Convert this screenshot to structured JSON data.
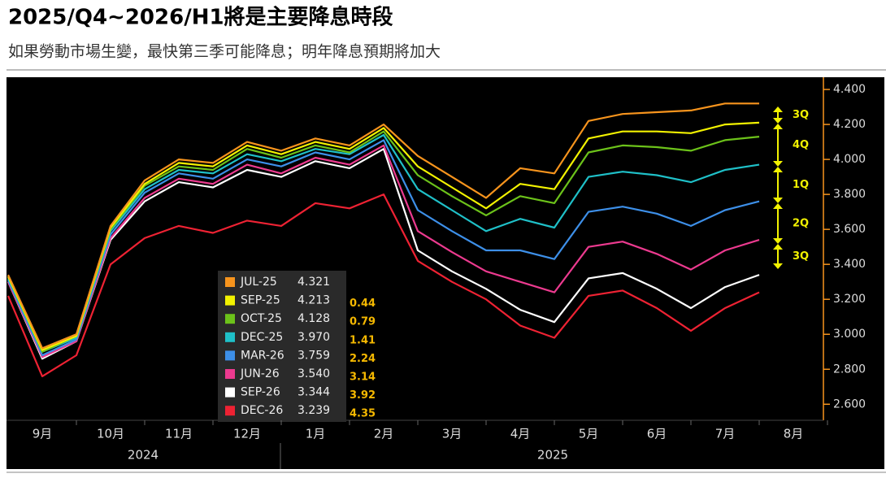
{
  "chart_data": {
    "type": "line",
    "title": "2025/Q4~2026/H1將是主要降息時段",
    "subtitle": "如果勞動市場生變，最快第三季可能降息；明年降息預期將加大",
    "categories": [
      null,
      "9月",
      null,
      "10月",
      null,
      "11月",
      null,
      "12月",
      null,
      "1月",
      null,
      "2月",
      null,
      "3月",
      null,
      "4月",
      null,
      "5月",
      null,
      "6月",
      null,
      "7月",
      null,
      "8月"
    ],
    "years": [
      "2024",
      "2025"
    ],
    "ylim": [
      2.42,
      4.47
    ],
    "yticks": [
      {
        "value": 2.6,
        "label": "2.600"
      },
      {
        "value": 2.8,
        "label": "2.800"
      },
      {
        "value": 3.0,
        "label": "3.000"
      },
      {
        "value": 3.2,
        "label": "3.200"
      },
      {
        "value": 3.4,
        "label": "3.400"
      },
      {
        "value": 3.6,
        "label": "3.600"
      },
      {
        "value": 3.8,
        "label": "3.800"
      },
      {
        "value": 4.0,
        "label": "4.000"
      },
      {
        "value": 4.2,
        "label": "4.200"
      },
      {
        "value": 4.4,
        "label": "4.400"
      }
    ],
    "grid": false,
    "series": [
      {
        "name": "JUL-25",
        "legend_value": "4.321",
        "color": "#f7941d",
        "values": [
          3.34,
          2.92,
          3.0,
          3.62,
          3.88,
          4.0,
          3.98,
          4.1,
          4.05,
          4.12,
          4.08,
          4.2,
          4.02,
          3.9,
          3.78,
          3.95,
          3.92,
          4.22,
          4.26,
          4.27,
          4.28,
          4.32,
          4.32,
          null
        ]
      },
      {
        "name": "SEP-25",
        "legend_value": "4.213",
        "cuts": 0.44,
        "color": "#f2f200",
        "values": [
          3.33,
          2.91,
          2.99,
          3.61,
          3.86,
          3.98,
          3.96,
          4.08,
          4.03,
          4.1,
          4.06,
          4.18,
          3.96,
          3.84,
          3.72,
          3.86,
          3.83,
          4.12,
          4.16,
          4.16,
          4.15,
          4.2,
          4.21,
          null
        ]
      },
      {
        "name": "OCT-25",
        "legend_value": "4.128",
        "cuts": 0.79,
        "color": "#6cc21a",
        "values": [
          3.33,
          2.9,
          2.99,
          3.6,
          3.85,
          3.96,
          3.94,
          4.06,
          4.01,
          4.08,
          4.04,
          4.16,
          3.91,
          3.79,
          3.68,
          3.79,
          3.75,
          4.04,
          4.08,
          4.07,
          4.05,
          4.11,
          4.13,
          null
        ]
      },
      {
        "name": "DEC-25",
        "legend_value": "3.970",
        "cuts": 1.41,
        "color": "#1fc0c8",
        "values": [
          3.32,
          2.9,
          2.98,
          3.59,
          3.83,
          3.94,
          3.92,
          4.03,
          3.99,
          4.06,
          4.03,
          4.14,
          3.83,
          3.71,
          3.59,
          3.66,
          3.61,
          3.9,
          3.93,
          3.91,
          3.87,
          3.94,
          3.97,
          null
        ]
      },
      {
        "name": "MAR-26",
        "legend_value": "3.759",
        "cuts": 2.24,
        "color": "#3d8fe8",
        "values": [
          3.31,
          2.88,
          2.97,
          3.57,
          3.81,
          3.92,
          3.89,
          4.0,
          3.96,
          4.04,
          4.0,
          4.11,
          3.71,
          3.59,
          3.48,
          3.48,
          3.43,
          3.7,
          3.73,
          3.69,
          3.62,
          3.71,
          3.76,
          null
        ]
      },
      {
        "name": "JUN-26",
        "legend_value": "3.540",
        "cuts": 3.14,
        "color": "#ec3a8f",
        "values": [
          3.3,
          2.87,
          2.96,
          3.55,
          3.78,
          3.89,
          3.86,
          3.97,
          3.92,
          4.01,
          3.97,
          4.08,
          3.59,
          3.47,
          3.36,
          3.3,
          3.24,
          3.5,
          3.53,
          3.46,
          3.37,
          3.48,
          3.54,
          null
        ]
      },
      {
        "name": "SEP-26",
        "legend_value": "3.344",
        "cuts": 3.92,
        "color": "#ffffff",
        "values": [
          3.3,
          2.86,
          2.96,
          3.54,
          3.76,
          3.87,
          3.84,
          3.94,
          3.9,
          3.99,
          3.95,
          4.06,
          3.48,
          3.36,
          3.26,
          3.14,
          3.07,
          3.32,
          3.35,
          3.26,
          3.15,
          3.27,
          3.34,
          null
        ]
      },
      {
        "name": "DEC-26",
        "legend_value": "3.239",
        "cuts": 4.35,
        "color": "#ee2233",
        "values": [
          3.22,
          2.76,
          2.88,
          3.4,
          3.55,
          3.62,
          3.58,
          3.65,
          3.62,
          3.75,
          3.72,
          3.8,
          3.42,
          3.3,
          3.2,
          3.05,
          2.98,
          3.22,
          3.25,
          3.15,
          3.02,
          3.15,
          3.24,
          null
        ]
      }
    ],
    "annotations": [
      "3Q",
      "4Q",
      "1Q",
      "2Q",
      "3Q"
    ]
  }
}
